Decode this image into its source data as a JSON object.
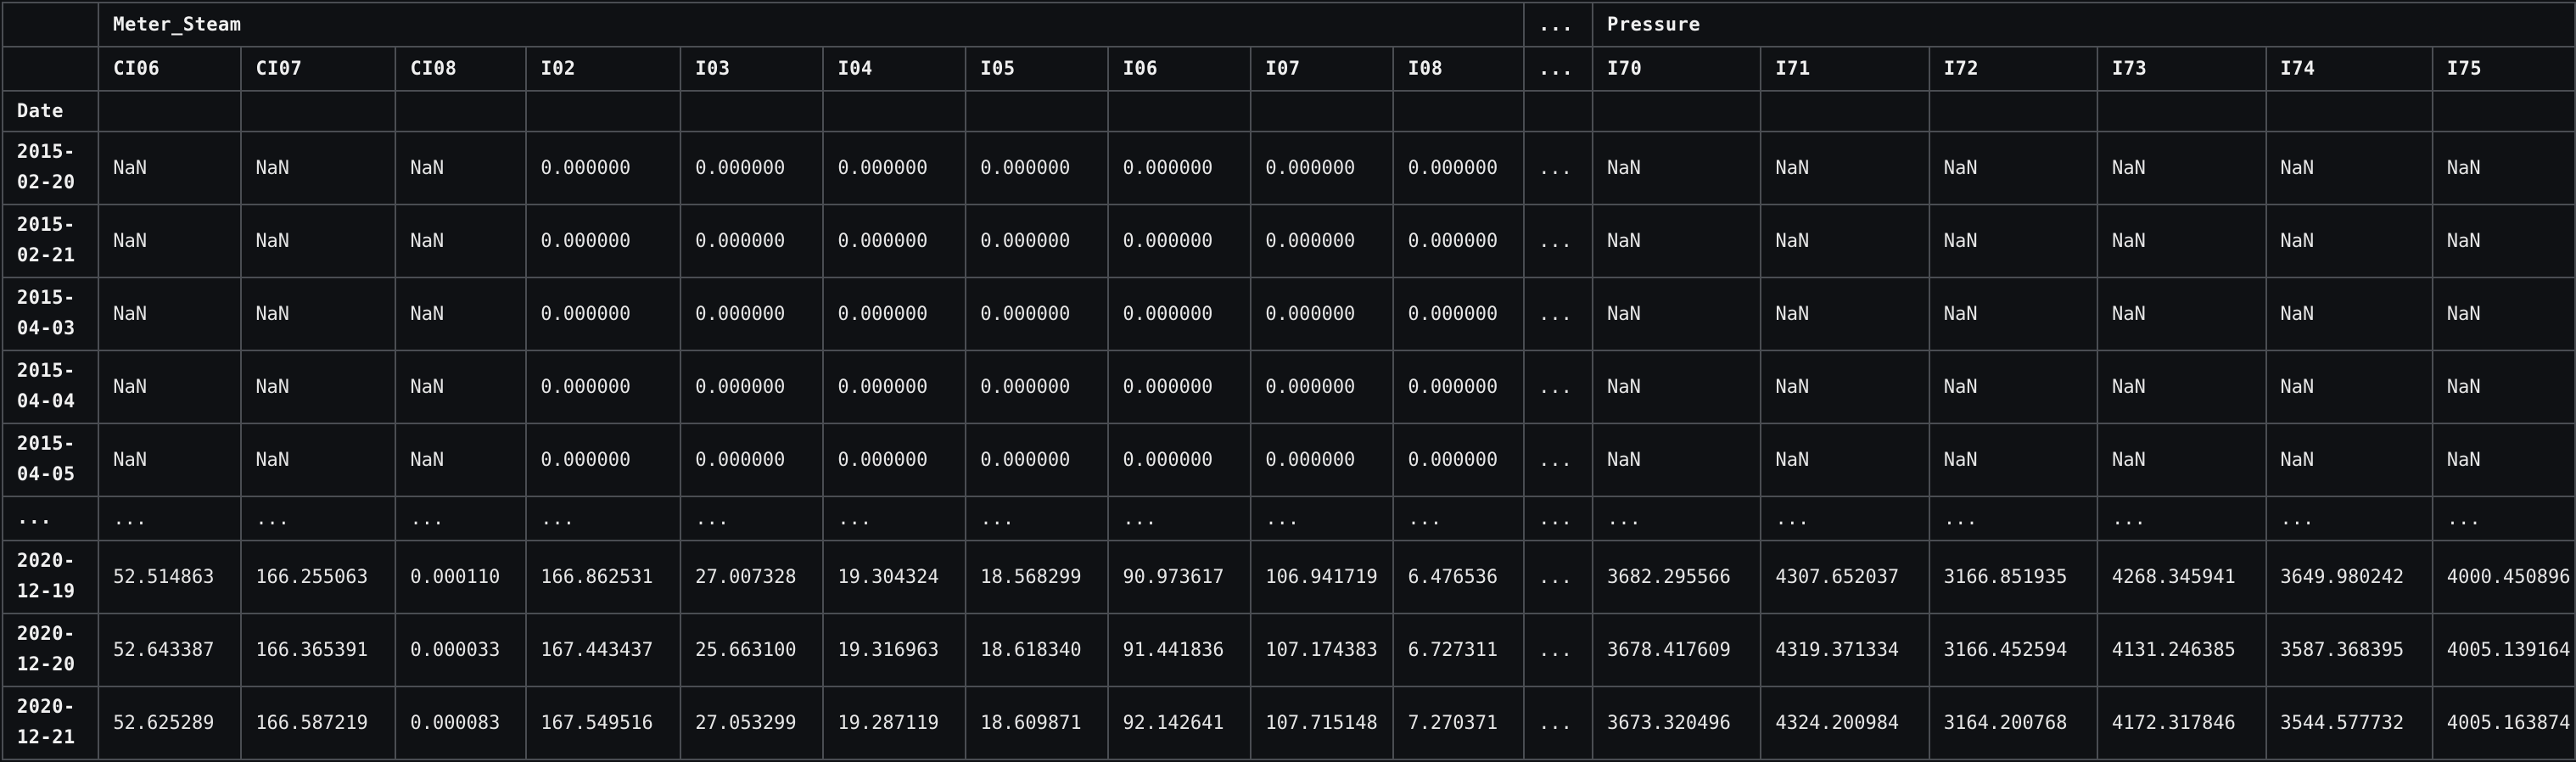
{
  "table": {
    "top_groups": {
      "meter_steam": "Meter_Steam",
      "ellipsis": "...",
      "pressure": "Pressure"
    },
    "columns": [
      "CI06",
      "CI07",
      "CI08",
      "I02",
      "I03",
      "I04",
      "I05",
      "I06",
      "I07",
      "I08",
      "...",
      "I70",
      "I71",
      "I72",
      "I73",
      "I74",
      "I75"
    ],
    "index_name": "Date",
    "rows": [
      {
        "index": "2015-02-20",
        "values": [
          "NaN",
          "NaN",
          "NaN",
          "0.000000",
          "0.000000",
          "0.000000",
          "0.000000",
          "0.000000",
          "0.000000",
          "0.000000",
          "...",
          "NaN",
          "NaN",
          "NaN",
          "NaN",
          "NaN",
          "NaN"
        ]
      },
      {
        "index": "2015-02-21",
        "values": [
          "NaN",
          "NaN",
          "NaN",
          "0.000000",
          "0.000000",
          "0.000000",
          "0.000000",
          "0.000000",
          "0.000000",
          "0.000000",
          "...",
          "NaN",
          "NaN",
          "NaN",
          "NaN",
          "NaN",
          "NaN"
        ]
      },
      {
        "index": "2015-04-03",
        "values": [
          "NaN",
          "NaN",
          "NaN",
          "0.000000",
          "0.000000",
          "0.000000",
          "0.000000",
          "0.000000",
          "0.000000",
          "0.000000",
          "...",
          "NaN",
          "NaN",
          "NaN",
          "NaN",
          "NaN",
          "NaN"
        ]
      },
      {
        "index": "2015-04-04",
        "values": [
          "NaN",
          "NaN",
          "NaN",
          "0.000000",
          "0.000000",
          "0.000000",
          "0.000000",
          "0.000000",
          "0.000000",
          "0.000000",
          "...",
          "NaN",
          "NaN",
          "NaN",
          "NaN",
          "NaN",
          "NaN"
        ]
      },
      {
        "index": "2015-04-05",
        "values": [
          "NaN",
          "NaN",
          "NaN",
          "0.000000",
          "0.000000",
          "0.000000",
          "0.000000",
          "0.000000",
          "0.000000",
          "0.000000",
          "...",
          "NaN",
          "NaN",
          "NaN",
          "NaN",
          "NaN",
          "NaN"
        ]
      },
      {
        "index": "...",
        "values": [
          "...",
          "...",
          "...",
          "...",
          "...",
          "...",
          "...",
          "...",
          "...",
          "...",
          "...",
          "...",
          "...",
          "...",
          "...",
          "...",
          "..."
        ]
      },
      {
        "index": "2020-12-19",
        "values": [
          "52.514863",
          "166.255063",
          "0.000110",
          "166.862531",
          "27.007328",
          "19.304324",
          "18.568299",
          "90.973617",
          "106.941719",
          "6.476536",
          "...",
          "3682.295566",
          "4307.652037",
          "3166.851935",
          "4268.345941",
          "3649.980242",
          "4000.450896"
        ]
      },
      {
        "index": "2020-12-20",
        "values": [
          "52.643387",
          "166.365391",
          "0.000033",
          "167.443437",
          "25.663100",
          "19.316963",
          "18.618340",
          "91.441836",
          "107.174383",
          "6.727311",
          "...",
          "3678.417609",
          "4319.371334",
          "3166.452594",
          "4131.246385",
          "3587.368395",
          "4005.139164"
        ]
      },
      {
        "index": "2020-12-21",
        "values": [
          "52.625289",
          "166.587219",
          "0.000083",
          "167.549516",
          "27.053299",
          "19.287119",
          "18.609871",
          "92.142641",
          "107.715148",
          "7.270371",
          "...",
          "3673.320496",
          "4324.200984",
          "3164.200768",
          "4172.317846",
          "3544.577732",
          "4005.163874"
        ]
      }
    ]
  }
}
